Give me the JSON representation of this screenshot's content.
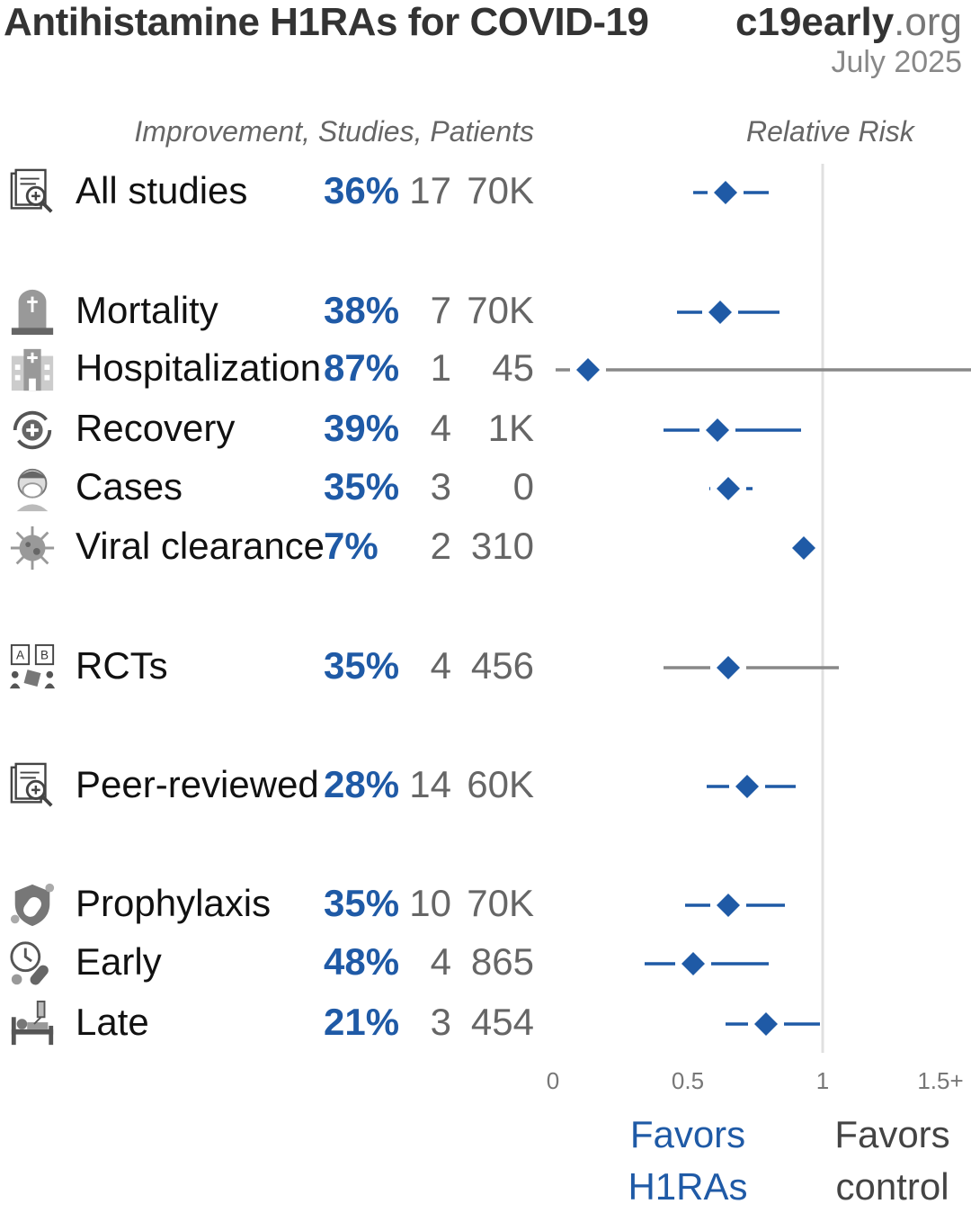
{
  "header": {
    "title": "Antihistamine H1RAs for COVID-19",
    "brand_bold": "c19early",
    "brand_rest": ".org",
    "date": "July 2025"
  },
  "columns": {
    "left": "Improvement, Studies, Patients",
    "right": "Relative Risk"
  },
  "footer": {
    "favors_left_1": "Favors",
    "favors_left_2": "H1RAs",
    "favors_right_1": "Favors",
    "favors_right_2": "control"
  },
  "colors": {
    "accent": "#1f5aa6",
    "ci_gray": "#888888",
    "reference_line": "#e0e0e0"
  },
  "rows": [
    {
      "icon": "document-search-icon",
      "label": "All studies",
      "improvement": "36%",
      "studies": "17",
      "patients": "70K"
    },
    {
      "icon": "tombstone-icon",
      "label": "Mortality",
      "improvement": "38%",
      "studies": "7",
      "patients": "70K"
    },
    {
      "icon": "hospital-icon",
      "label": "Hospitalization",
      "improvement": "87%",
      "studies": "1",
      "patients": "45"
    },
    {
      "icon": "recovery-icon",
      "label": "Recovery",
      "improvement": "39%",
      "studies": "4",
      "patients": "1K"
    },
    {
      "icon": "sneezing-person-icon",
      "label": "Cases",
      "improvement": "35%",
      "studies": "3",
      "patients": "0"
    },
    {
      "icon": "virus-icon",
      "label": "Viral clearance",
      "improvement": "7%",
      "studies": "2",
      "patients": "310"
    },
    {
      "icon": "rct-icon",
      "label": "RCTs",
      "improvement": "35%",
      "studies": "4",
      "patients": "456"
    },
    {
      "icon": "document-search-icon",
      "label": "Peer-reviewed",
      "improvement": "28%",
      "studies": "14",
      "patients": "60K"
    },
    {
      "icon": "shield-icon",
      "label": "Prophylaxis",
      "improvement": "35%",
      "studies": "10",
      "patients": "70K"
    },
    {
      "icon": "clock-pill-icon",
      "label": "Early",
      "improvement": "48%",
      "studies": "4",
      "patients": "865"
    },
    {
      "icon": "hospital-bed-icon",
      "label": "Late",
      "improvement": "21%",
      "studies": "3",
      "patients": "454"
    }
  ],
  "chart_data": {
    "type": "forest",
    "xlabel": "Relative Risk",
    "ticks": [
      "0",
      "0.5",
      "1",
      "1.5+"
    ],
    "xlim": [
      0,
      1.5
    ],
    "reference_line": 1,
    "series": [
      {
        "label": "All studies",
        "rr": 0.64,
        "ci": [
          0.52,
          0.8
        ],
        "color": "#1f5aa6"
      },
      {
        "label": "Mortality",
        "rr": 0.62,
        "ci": [
          0.46,
          0.84
        ],
        "color": "#1f5aa6"
      },
      {
        "label": "Hospitalization",
        "rr": 0.13,
        "ci": [
          0.01,
          1.6
        ],
        "color": "#1f5aa6"
      },
      {
        "label": "Recovery",
        "rr": 0.61,
        "ci": [
          0.41,
          0.92
        ],
        "color": "#1f5aa6"
      },
      {
        "label": "Cases",
        "rr": 0.65,
        "ci": [
          0.58,
          0.74
        ],
        "color": "#1f5aa6"
      },
      {
        "label": "Viral clearance",
        "rr": 0.93,
        "ci": [
          0.9,
          0.97
        ],
        "color": "#1f5aa6"
      },
      {
        "label": "RCTs",
        "rr": 0.65,
        "ci": [
          0.41,
          1.06
        ],
        "color": "#888888"
      },
      {
        "label": "Peer-reviewed",
        "rr": 0.72,
        "ci": [
          0.57,
          0.9
        ],
        "color": "#1f5aa6"
      },
      {
        "label": "Prophylaxis",
        "rr": 0.65,
        "ci": [
          0.49,
          0.86
        ],
        "color": "#1f5aa6"
      },
      {
        "label": "Early",
        "rr": 0.52,
        "ci": [
          0.34,
          0.8
        ],
        "color": "#1f5aa6"
      },
      {
        "label": "Late",
        "rr": 0.79,
        "ci": [
          0.64,
          0.99
        ],
        "color": "#1f5aa6"
      }
    ]
  }
}
